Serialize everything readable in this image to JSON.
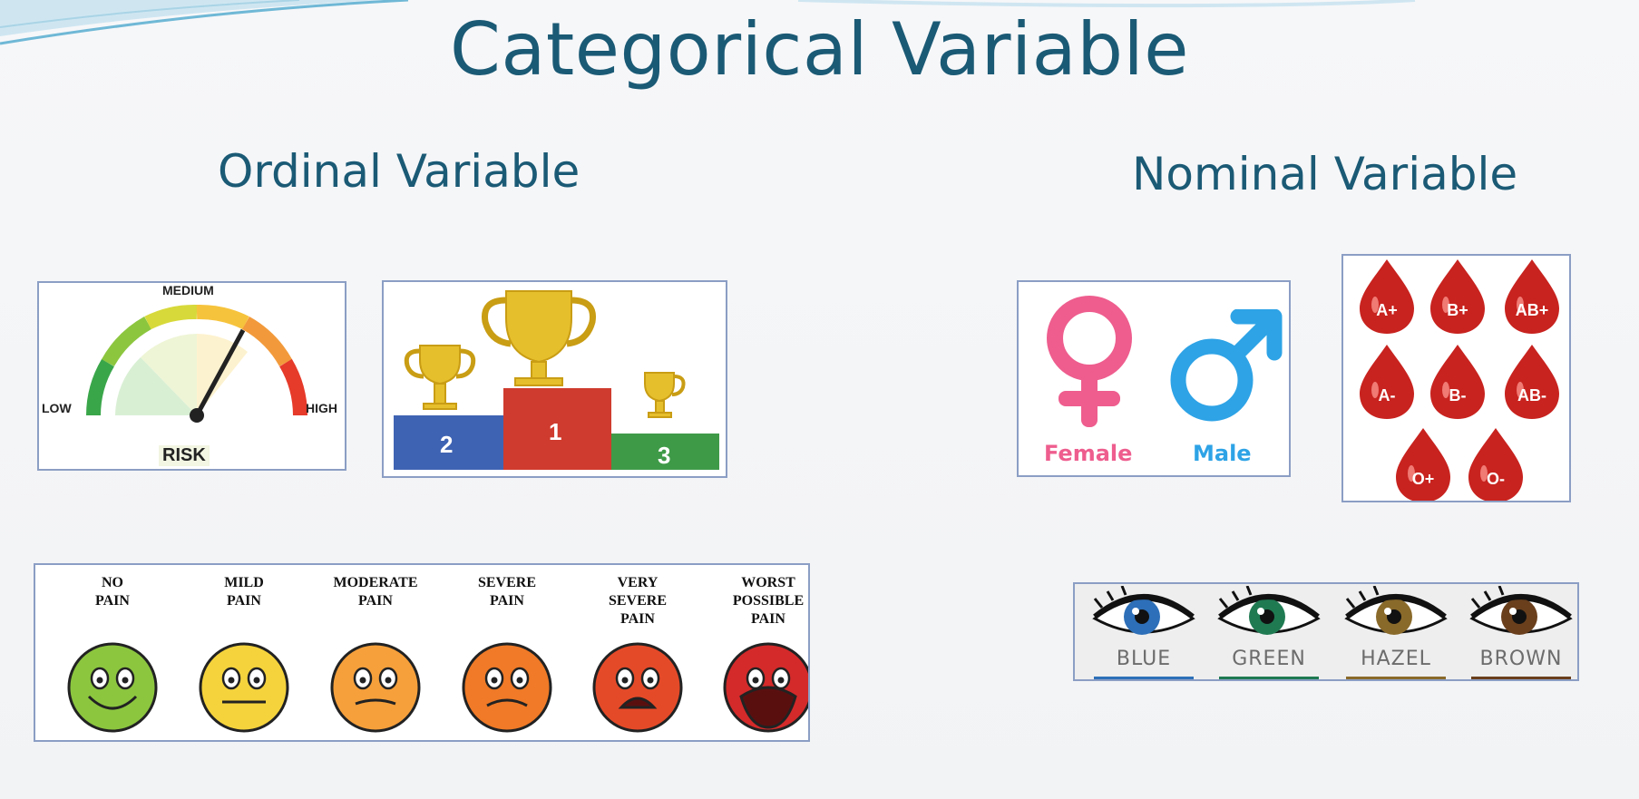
{
  "title": "Categorical Variable",
  "ordinal": {
    "heading": "Ordinal Variable",
    "gauge": {
      "low": "LOW",
      "medium": "MEDIUM",
      "high": "HIGH",
      "caption": "RISK"
    },
    "podium": {
      "left": "2",
      "center": "1",
      "right": "3"
    },
    "pain": [
      {
        "l1": "NO",
        "l2": "PAIN",
        "l3": "",
        "face": "#8cc63f"
      },
      {
        "l1": "MILD",
        "l2": "PAIN",
        "l3": "",
        "face": "#f5d33c"
      },
      {
        "l1": "MODERATE",
        "l2": "PAIN",
        "l3": "",
        "face": "#f6a03b"
      },
      {
        "l1": "SEVERE",
        "l2": "PAIN",
        "l3": "",
        "face": "#f07a27"
      },
      {
        "l1": "VERY",
        "l2": "SEVERE",
        "l3": "PAIN",
        "face": "#e54a28"
      },
      {
        "l1": "WORST",
        "l2": "POSSIBLE",
        "l3": "PAIN",
        "face": "#d42a2a"
      }
    ]
  },
  "nominal": {
    "heading": "Nominal Variable",
    "gender": {
      "female": "Female",
      "male": "Male",
      "female_color": "#ee5d8e",
      "male_color": "#2ea3e6"
    },
    "blood": [
      "A+",
      "B+",
      "AB+",
      "A-",
      "B-",
      "AB-",
      "O+",
      "O-"
    ],
    "eyes": [
      {
        "label": "BLUE",
        "iris": "#2d6fb8"
      },
      {
        "label": "GREEN",
        "iris": "#1f7a52"
      },
      {
        "label": "HAZEL",
        "iris": "#8a6a2a"
      },
      {
        "label": "BROWN",
        "iris": "#6a3f1c"
      }
    ]
  }
}
